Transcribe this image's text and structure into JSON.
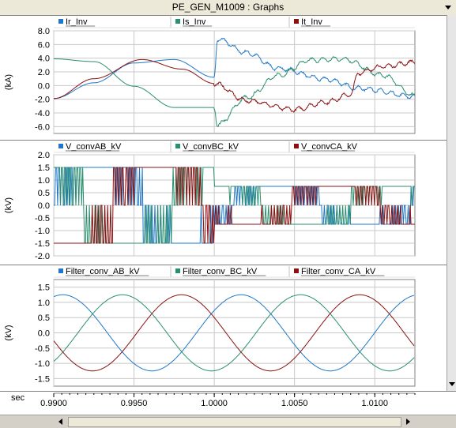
{
  "window": {
    "title": "PE_GEN_M1009 : Graphs"
  },
  "panels": [
    {
      "id": "current",
      "unit_label": "(kA)",
      "yticks": [
        "8.0",
        "6.0",
        "4.0",
        "2.0",
        "0.0",
        "-2.0",
        "-4.0",
        "-6.0"
      ],
      "ymin": -7,
      "ymax": 8,
      "legend": [
        {
          "label": "Ir_Inv",
          "color": "#1f77c8"
        },
        {
          "label": "Is_Inv",
          "color": "#2a8f6f"
        },
        {
          "label": "It_Inv",
          "color": "#8b1010"
        }
      ]
    },
    {
      "id": "conv-voltage",
      "unit_label": "(kV)",
      "yticks": [
        "2.0",
        "1.5",
        "1.0",
        "0.5",
        "0.0",
        "-0.5",
        "-1.0",
        "-1.5",
        "-2.0"
      ],
      "ymin": -2,
      "ymax": 2,
      "legend": [
        {
          "label": "V_convAB_kV",
          "color": "#1f77c8"
        },
        {
          "label": "V_convBC_kV",
          "color": "#2a8f6f"
        },
        {
          "label": "V_convCA_kV",
          "color": "#8b1010"
        }
      ]
    },
    {
      "id": "filter-voltage",
      "unit_label": "(kV)",
      "yticks": [
        "1.5",
        "1.0",
        "0.5",
        "0.0",
        "-0.5",
        "-1.0",
        "-1.5"
      ],
      "ymin": -1.75,
      "ymax": 1.75,
      "legend": [
        {
          "label": "Filter_conv_AB_kV",
          "color": "#1f77c8"
        },
        {
          "label": "Filter_conv_BC_kV",
          "color": "#2a8f6f"
        },
        {
          "label": "Filter_conv_CA_kV",
          "color": "#8b1010"
        }
      ]
    }
  ],
  "xaxis": {
    "unit_label": "sec",
    "ticks": [
      "0.9900",
      "0.9950",
      "1.0000",
      "1.0050",
      "1.0100"
    ],
    "tick_values": [
      0.99,
      0.995,
      1.0,
      1.005,
      1.01
    ],
    "xmin": 0.99,
    "xmax": 1.0125
  },
  "chart_data": [
    {
      "type": "line",
      "title": "",
      "ylabel": "(kA)",
      "ylim": [
        -7,
        8
      ],
      "x_range": [
        0.99,
        1.0125
      ],
      "series": [
        {
          "name": "Ir_Inv",
          "description_points": [
            [
              0.99,
              -1.9
            ],
            [
              0.9925,
              0.4
            ],
            [
              0.995,
              3.3
            ],
            [
              0.9975,
              3.8
            ],
            [
              1.0,
              1.2
            ],
            [
              1.0002,
              6.8
            ],
            [
              1.002,
              4.8
            ],
            [
              1.004,
              2.5
            ],
            [
              1.007,
              0.9
            ],
            [
              1.009,
              -0.4
            ],
            [
              1.0125,
              -1.6
            ]
          ]
        },
        {
          "name": "Is_Inv",
          "description_points": [
            [
              0.99,
              3.9
            ],
            [
              0.9925,
              3.5
            ],
            [
              0.995,
              -0.1
            ],
            [
              0.9975,
              -3.2
            ],
            [
              1.0,
              -3.2
            ],
            [
              1.0002,
              -5.7
            ],
            [
              1.002,
              -1.8
            ],
            [
              1.004,
              1.5
            ],
            [
              1.006,
              3.7
            ],
            [
              1.008,
              3.9
            ],
            [
              1.0105,
              1.5
            ],
            [
              1.0125,
              -1.5
            ]
          ]
        },
        {
          "name": "It_Inv",
          "description_points": [
            [
              0.99,
              -1.9
            ],
            [
              0.9925,
              1.0
            ],
            [
              0.9955,
              3.8
            ],
            [
              0.998,
              2.4
            ],
            [
              1.0,
              0.3
            ],
            [
              1.002,
              -2.2
            ],
            [
              1.005,
              -3.5
            ],
            [
              1.007,
              -2.4
            ],
            [
              1.0085,
              -1.3
            ],
            [
              1.009,
              1.9
            ],
            [
              1.0105,
              2.8
            ],
            [
              1.0125,
              3.4
            ]
          ]
        }
      ]
    },
    {
      "type": "line",
      "title": "",
      "ylabel": "(kV)",
      "ylim": [
        -2,
        2
      ],
      "x_range": [
        0.99,
        1.0125
      ],
      "series": [
        {
          "name": "V_convAB_kV",
          "levels_before_1000": [
            1.5,
            -1.5
          ],
          "levels_after_1000": [
            0.75,
            -0.75
          ]
        },
        {
          "name": "V_convBC_kV",
          "levels_before_1000": [
            1.5,
            -1.5
          ],
          "levels_after_1000": [
            0.75,
            -0.75
          ]
        },
        {
          "name": "V_convCA_kV",
          "levels_before_1000": [
            1.5,
            -1.5
          ],
          "levels_after_1000": [
            0.75,
            -0.75
          ]
        }
      ]
    },
    {
      "type": "line",
      "title": "",
      "ylabel": "(kV)",
      "ylim": [
        -1.75,
        1.75
      ],
      "x_range": [
        0.99,
        1.0125
      ],
      "series": [
        {
          "name": "Filter_conv_AB_kV",
          "amplitude": 1.25,
          "period_s": 0.0111
        },
        {
          "name": "Filter_conv_BC_kV",
          "amplitude": 1.25,
          "period_s": 0.0111
        },
        {
          "name": "Filter_conv_CA_kV",
          "amplitude": 1.25,
          "period_s": 0.0111
        }
      ]
    }
  ]
}
